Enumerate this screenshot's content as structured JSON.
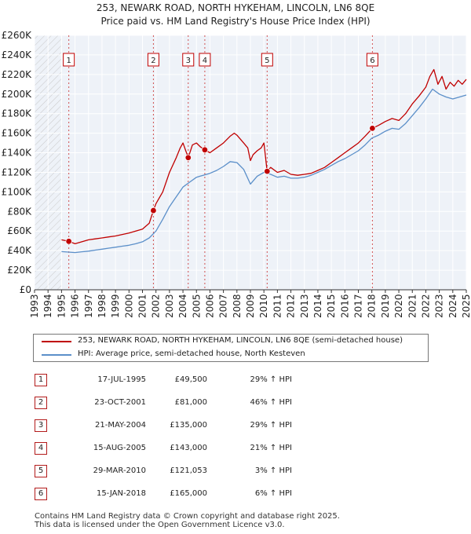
{
  "chart_data": {
    "type": "line",
    "title": "253, NEWARK ROAD, NORTH HYKEHAM, LINCOLN, LN6 8QE",
    "subtitle": "Price paid vs. HM Land Registry's House Price Index (HPI)",
    "xlabel": "",
    "ylabel": "",
    "xlim": [
      1993,
      2025
    ],
    "ylim": [
      0,
      260000
    ],
    "x_ticks": [
      "1993",
      "1994",
      "1995",
      "1996",
      "1997",
      "1998",
      "1999",
      "2000",
      "2001",
      "2002",
      "2003",
      "2004",
      "2005",
      "2006",
      "2007",
      "2008",
      "2009",
      "2010",
      "2011",
      "2012",
      "2013",
      "2014",
      "2015",
      "2016",
      "2017",
      "2018",
      "2019",
      "2020",
      "2021",
      "2022",
      "2023",
      "2024",
      "2025"
    ],
    "y_ticks": [
      "£0",
      "£20K",
      "£40K",
      "£60K",
      "£80K",
      "£100K",
      "£120K",
      "£140K",
      "£160K",
      "£180K",
      "£200K",
      "£220K",
      "£240K",
      "£260K"
    ],
    "grid": true,
    "legend_position": "below",
    "series": [
      {
        "name": "253, NEWARK ROAD, NORTH HYKEHAM, LINCOLN, LN6 8QE (semi-detached house)",
        "color": "#c00000",
        "x": [
          1995.0,
          1995.54,
          1996.0,
          1996.5,
          1997.0,
          1997.5,
          1998.0,
          1998.5,
          1999.0,
          1999.5,
          2000.0,
          2000.5,
          2001.0,
          2001.5,
          2001.81,
          2002.0,
          2002.5,
          2003.0,
          2003.5,
          2003.8,
          2004.0,
          2004.39,
          2004.7,
          2005.0,
          2005.3,
          2005.62,
          2006.0,
          2006.5,
          2007.0,
          2007.5,
          2007.8,
          2008.0,
          2008.5,
          2008.8,
          2009.0,
          2009.2,
          2009.5,
          2009.8,
          2010.0,
          2010.24,
          2010.5,
          2011.0,
          2011.5,
          2012.0,
          2012.5,
          2013.0,
          2013.5,
          2014.0,
          2014.5,
          2015.0,
          2015.5,
          2016.0,
          2016.5,
          2017.0,
          2017.5,
          2018.04,
          2018.5,
          2019.0,
          2019.5,
          2020.0,
          2020.5,
          2021.0,
          2021.5,
          2022.0,
          2022.3,
          2022.6,
          2022.9,
          2023.2,
          2023.5,
          2023.8,
          2024.1,
          2024.4,
          2024.7,
          2025.0
        ],
        "values": [
          51000,
          49500,
          47000,
          49000,
          51000,
          52000,
          53000,
          54000,
          55000,
          56500,
          58000,
          60000,
          62000,
          68000,
          81000,
          88000,
          100000,
          120000,
          135000,
          145000,
          150000,
          135000,
          148000,
          150000,
          146000,
          143000,
          140000,
          145000,
          150000,
          157000,
          160000,
          158000,
          150000,
          145000,
          132000,
          138000,
          142000,
          145000,
          150000,
          121053,
          125000,
          120000,
          122000,
          118000,
          117000,
          118000,
          119000,
          122000,
          125000,
          130000,
          135000,
          140000,
          145000,
          150000,
          157000,
          165000,
          168000,
          172000,
          175000,
          173000,
          180000,
          190000,
          198000,
          207000,
          218000,
          225000,
          210000,
          218000,
          205000,
          212000,
          208000,
          214000,
          210000,
          215000
        ]
      },
      {
        "name": "HPI: Average price, semi-detached house, North Kesteven",
        "color": "#5b8fc9",
        "x": [
          1995.0,
          1995.5,
          1996.0,
          1996.5,
          1997.0,
          1997.5,
          1998.0,
          1998.5,
          1999.0,
          1999.5,
          2000.0,
          2000.5,
          2001.0,
          2001.5,
          2002.0,
          2002.5,
          2003.0,
          2003.5,
          2004.0,
          2004.5,
          2005.0,
          2005.5,
          2006.0,
          2006.5,
          2007.0,
          2007.5,
          2008.0,
          2008.5,
          2009.0,
          2009.5,
          2010.0,
          2010.5,
          2011.0,
          2011.5,
          2012.0,
          2012.5,
          2013.0,
          2013.5,
          2014.0,
          2014.5,
          2015.0,
          2015.5,
          2016.0,
          2016.5,
          2017.0,
          2017.5,
          2018.0,
          2018.5,
          2019.0,
          2019.5,
          2020.0,
          2020.5,
          2021.0,
          2021.5,
          2022.0,
          2022.5,
          2023.0,
          2023.5,
          2024.0,
          2024.5,
          2025.0
        ],
        "values": [
          39000,
          38500,
          38000,
          38800,
          39500,
          40500,
          41500,
          42500,
          43500,
          44500,
          45500,
          47000,
          49000,
          53000,
          60000,
          72000,
          85000,
          95000,
          105000,
          110000,
          115000,
          117000,
          119000,
          122000,
          126000,
          131000,
          130000,
          123000,
          108000,
          116000,
          120000,
          118000,
          115000,
          116000,
          114000,
          114000,
          115000,
          117000,
          120000,
          123000,
          127000,
          131000,
          134000,
          138000,
          142000,
          148000,
          155000,
          158000,
          162000,
          165000,
          164000,
          170000,
          178000,
          186000,
          195000,
          205000,
          200000,
          197000,
          195000,
          197000,
          199000
        ]
      }
    ],
    "markers": [
      {
        "label": "1",
        "x": 1995.54,
        "value": 49500
      },
      {
        "label": "2",
        "x": 2001.81,
        "value": 81000
      },
      {
        "label": "3",
        "x": 2004.39,
        "value": 135000
      },
      {
        "label": "4",
        "x": 2005.62,
        "value": 143000
      },
      {
        "label": "5",
        "x": 2010.24,
        "value": 121053
      },
      {
        "label": "6",
        "x": 2018.04,
        "value": 165000
      }
    ],
    "hatch_before": 1995.0
  },
  "legend": {
    "red_label": "253, NEWARK ROAD, NORTH HYKEHAM, LINCOLN, LN6 8QE (semi-detached house)",
    "blue_label": "HPI: Average price, semi-detached house, North Kesteven",
    "red_color": "#c00000",
    "blue_color": "#5b8fc9"
  },
  "sales": [
    {
      "num": "1",
      "date": "17-JUL-1995",
      "price": "£49,500",
      "hpi": "29% ↑ HPI"
    },
    {
      "num": "2",
      "date": "23-OCT-2001",
      "price": "£81,000",
      "hpi": "46% ↑ HPI"
    },
    {
      "num": "3",
      "date": "21-MAY-2004",
      "price": "£135,000",
      "hpi": "29% ↑ HPI"
    },
    {
      "num": "4",
      "date": "15-AUG-2005",
      "price": "£143,000",
      "hpi": "21% ↑ HPI"
    },
    {
      "num": "5",
      "date": "29-MAR-2010",
      "price": "£121,053",
      "hpi": "3% ↑ HPI"
    },
    {
      "num": "6",
      "date": "15-JAN-2018",
      "price": "£165,000",
      "hpi": "6% ↑ HPI"
    }
  ],
  "footer": {
    "line1": "Contains HM Land Registry data © Crown copyright and database right 2025.",
    "line2": "This data is licensed under the Open Government Licence v3.0."
  }
}
